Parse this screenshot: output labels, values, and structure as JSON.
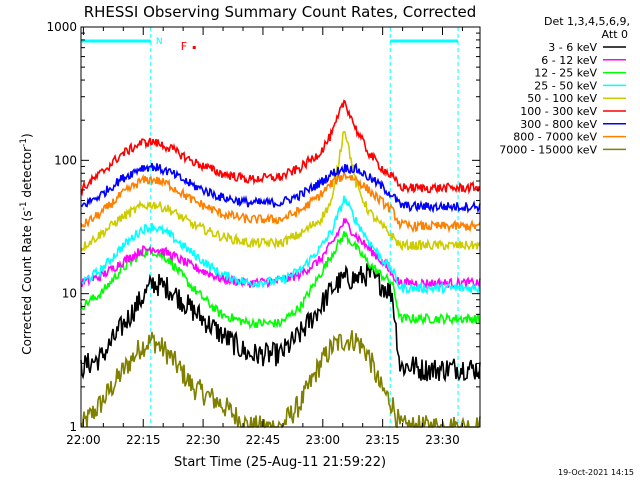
{
  "chart_data": {
    "type": "line",
    "title": "RHESSI Observing Summary Count Rates, Corrected",
    "xlabel": "Start Time (25-Aug-11 21:59:22)",
    "ylabel_main": "Corrected Count Rate (s",
    "ylabel_sup1": "-1",
    "ylabel_mid": " detector",
    "ylabel_sup2": "-1",
    "ylabel_end": ")",
    "y_scale": "log",
    "ylim": [
      1,
      1000
    ],
    "xlim_minutes": [
      0,
      100
    ],
    "x_ticks": [
      "22:00",
      "22:15",
      "22:30",
      "22:45",
      "23:00",
      "23:15",
      "23:30"
    ],
    "y_ticks": [
      "1",
      "10",
      "100",
      "1000"
    ],
    "legend_placement": "right",
    "legend_header": [
      "Det 1,3,4,5,6,9,",
      "Att 0"
    ],
    "footer_date": "19-Oct-2021 14:15",
    "flags": {
      "night_label": "N",
      "flare_label": "F"
    },
    "series": [
      {
        "name": "3 - 6 keV",
        "color": "#000000",
        "x": [
          0,
          5,
          10,
          15,
          18,
          22,
          28,
          35,
          42,
          50,
          55,
          60,
          63,
          66,
          69,
          72,
          75,
          78,
          80,
          83,
          85,
          90,
          95,
          100
        ],
        "values": [
          2.8,
          3.3,
          5.5,
          9,
          12,
          11,
          7.5,
          5,
          3.5,
          3.5,
          5,
          8,
          11,
          13,
          13,
          14,
          12,
          10,
          2.8,
          2.9,
          2.7,
          2.7,
          2.8,
          2.7
        ]
      },
      {
        "name": "6 - 12 keV",
        "color": "#ff00ff",
        "x": [
          0,
          5,
          10,
          15,
          18,
          22,
          28,
          35,
          42,
          50,
          55,
          60,
          63,
          66,
          69,
          72,
          75,
          78,
          80,
          83,
          85,
          90,
          95,
          100
        ],
        "values": [
          12,
          13.5,
          17,
          21,
          22,
          20,
          16,
          13,
          12,
          12.5,
          14,
          18,
          24,
          35,
          27,
          22,
          18,
          14,
          12,
          12,
          12,
          12,
          12,
          12
        ]
      },
      {
        "name": "12 - 25 keV",
        "color": "#00ff00",
        "x": [
          0,
          5,
          10,
          15,
          18,
          22,
          28,
          35,
          42,
          50,
          55,
          60,
          63,
          66,
          69,
          72,
          75,
          78,
          80,
          83,
          85,
          90,
          95,
          100
        ],
        "values": [
          8,
          10,
          15,
          20,
          21,
          18,
          11,
          7,
          6,
          6,
          8,
          14,
          20,
          28,
          22,
          17,
          14,
          12,
          6.5,
          6.5,
          6.5,
          6.5,
          6.5,
          6.5
        ]
      },
      {
        "name": "25 - 50 keV",
        "color": "#00ffff",
        "x": [
          0,
          5,
          10,
          15,
          18,
          22,
          28,
          35,
          42,
          50,
          55,
          60,
          63,
          66,
          69,
          72,
          75,
          78,
          80,
          83,
          85,
          90,
          95,
          100
        ],
        "values": [
          12,
          15,
          22,
          30,
          32,
          28,
          20,
          14,
          12,
          12.5,
          15,
          22,
          30,
          52,
          35,
          25,
          19,
          15,
          11,
          11,
          11,
          11,
          11,
          11
        ]
      },
      {
        "name": "50 - 100 keV",
        "color": "#cccc00",
        "x": [
          0,
          5,
          10,
          15,
          18,
          22,
          28,
          35,
          42,
          50,
          55,
          60,
          63,
          66,
          69,
          72,
          75,
          78,
          80,
          83,
          85,
          90,
          95,
          100
        ],
        "values": [
          22,
          28,
          37,
          45,
          47,
          43,
          33,
          27,
          24,
          24,
          28,
          36,
          50,
          180,
          65,
          42,
          33,
          27,
          23,
          23,
          23,
          23,
          23,
          23
        ]
      },
      {
        "name": "100 - 300 keV",
        "color": "#ff0000",
        "x": [
          0,
          5,
          10,
          15,
          18,
          22,
          28,
          35,
          42,
          50,
          55,
          60,
          63,
          66,
          69,
          72,
          75,
          78,
          80,
          83,
          85,
          90,
          95,
          100
        ],
        "values": [
          60,
          80,
          110,
          135,
          138,
          125,
          98,
          80,
          72,
          75,
          88,
          115,
          160,
          280,
          170,
          115,
          90,
          75,
          63,
          62,
          62,
          62,
          62,
          63
        ]
      },
      {
        "name": "300 - 800 keV",
        "color": "#0000ff",
        "x": [
          0,
          5,
          10,
          15,
          18,
          22,
          28,
          35,
          42,
          50,
          55,
          60,
          63,
          66,
          69,
          72,
          75,
          78,
          80,
          83,
          85,
          90,
          95,
          100
        ],
        "values": [
          45,
          55,
          72,
          88,
          90,
          82,
          65,
          53,
          48,
          48,
          55,
          68,
          80,
          88,
          86,
          75,
          65,
          55,
          46,
          45,
          45,
          45,
          45,
          45
        ]
      },
      {
        "name": "800 - 7000 keV",
        "color": "#ff8000",
        "x": [
          0,
          5,
          10,
          15,
          18,
          22,
          28,
          35,
          42,
          50,
          55,
          60,
          63,
          66,
          69,
          72,
          75,
          78,
          80,
          83,
          85,
          90,
          95,
          100
        ],
        "values": [
          32,
          40,
          55,
          70,
          72,
          66,
          50,
          40,
          36,
          36,
          42,
          55,
          68,
          78,
          72,
          60,
          50,
          42,
          33,
          32,
          32,
          32,
          32,
          32
        ]
      },
      {
        "name": "7000 - 15000 keV",
        "color": "#808000",
        "x": [
          0,
          5,
          10,
          15,
          18,
          22,
          28,
          35,
          42,
          50,
          55,
          60,
          63,
          66,
          69,
          72,
          75,
          78,
          80,
          83,
          85,
          90,
          95,
          100
        ],
        "values": [
          1,
          1.5,
          2.5,
          4,
          4.5,
          3.5,
          2,
          1.5,
          1,
          1,
          1.5,
          3,
          4,
          4.5,
          4.5,
          3.5,
          2,
          1.5,
          1,
          1,
          1,
          1,
          1,
          1
        ]
      }
    ]
  }
}
